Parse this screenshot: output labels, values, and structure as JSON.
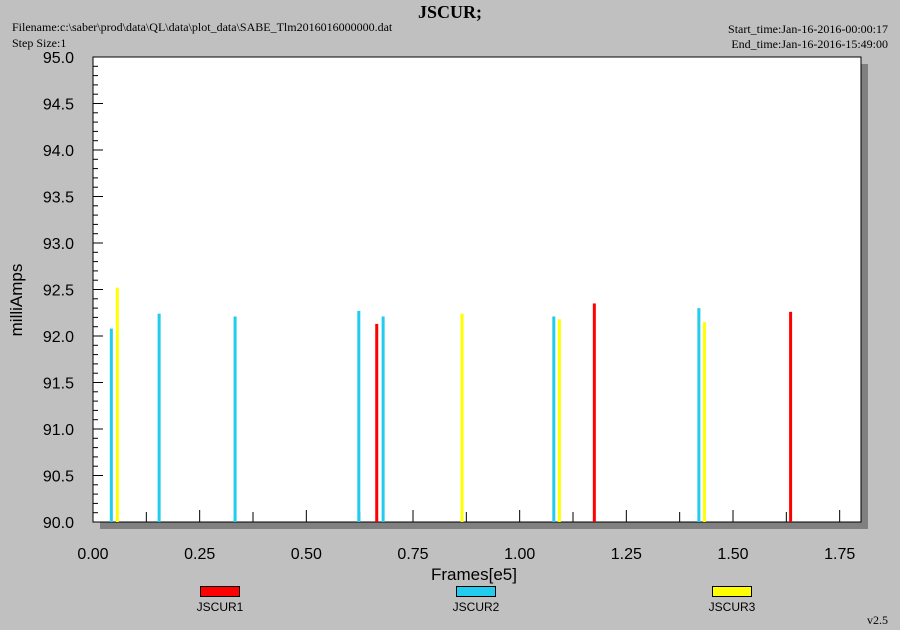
{
  "header": {
    "filename": "Filename:c:\\saber\\prod\\data\\QL\\data\\plot_data\\SABE_Tlm2016016000000.dat",
    "step_size": "Step Size:1",
    "start_time": "Start_time:Jan-16-2016-00:00:17",
    "end_time": "End_time:Jan-16-2016-15:49:00"
  },
  "version": "v2.5",
  "chart_data": {
    "type": "bar",
    "title": "JSCUR;",
    "xlabel": "Frames[e5]",
    "ylabel": "milliAmps",
    "xlim": [
      0.0,
      1.8
    ],
    "ylim": [
      90.0,
      95.0
    ],
    "x_ticks": [
      "0.00",
      "0.25",
      "0.50",
      "0.75",
      "1.00",
      "1.25",
      "1.50",
      "1.75"
    ],
    "y_ticks": [
      "90.0",
      "90.5",
      "91.0",
      "91.5",
      "92.0",
      "92.5",
      "93.0",
      "93.5",
      "94.0",
      "94.5",
      "95.0"
    ],
    "grid": false,
    "legend_position": "bottom",
    "series": [
      {
        "name": "JSCUR1",
        "color": "#ff0000",
        "points": [
          {
            "x": 0.665,
            "y": 92.13
          },
          {
            "x": 1.175,
            "y": 92.35
          },
          {
            "x": 1.635,
            "y": 92.26
          }
        ]
      },
      {
        "name": "JSCUR2",
        "color": "#22ccee",
        "points": [
          {
            "x": 0.043,
            "y": 92.08
          },
          {
            "x": 0.155,
            "y": 92.24
          },
          {
            "x": 0.333,
            "y": 92.21
          },
          {
            "x": 0.623,
            "y": 92.27
          },
          {
            "x": 0.68,
            "y": 92.21
          },
          {
            "x": 1.08,
            "y": 92.21
          },
          {
            "x": 1.42,
            "y": 92.3
          }
        ]
      },
      {
        "name": "JSCUR3",
        "color": "#ffff00",
        "points": [
          {
            "x": 0.057,
            "y": 92.52
          },
          {
            "x": 0.865,
            "y": 92.24
          },
          {
            "x": 1.093,
            "y": 92.18
          },
          {
            "x": 1.433,
            "y": 92.15
          }
        ]
      }
    ]
  }
}
